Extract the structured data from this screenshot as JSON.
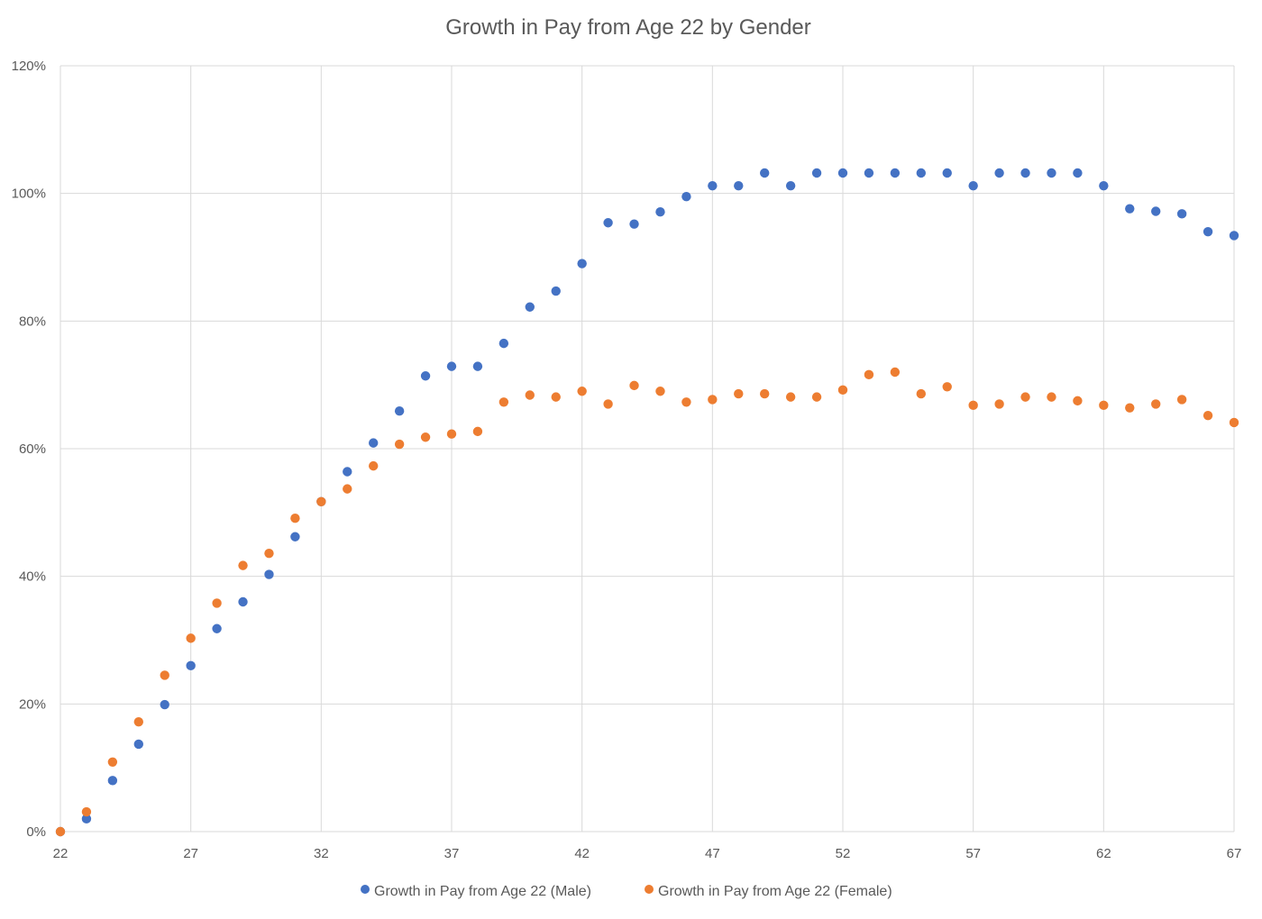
{
  "chart_data": {
    "type": "scatter",
    "title": "Growth in Pay from Age 22 by Gender",
    "xlabel": "",
    "ylabel": "",
    "xlim": [
      22,
      67
    ],
    "ylim": [
      0,
      1.2
    ],
    "x_ticks": [
      22,
      27,
      32,
      37,
      42,
      47,
      52,
      57,
      62,
      67
    ],
    "y_ticks": [
      0,
      0.2,
      0.4,
      0.6,
      0.8,
      1.0,
      1.2
    ],
    "y_tick_labels": [
      "0%",
      "20%",
      "40%",
      "60%",
      "80%",
      "100%",
      "120%"
    ],
    "grid": true,
    "legend_position": "bottom",
    "series": [
      {
        "name": "Growth in Pay from Age 22 (Male)",
        "color": "#4472C4",
        "x": [
          22,
          23,
          24,
          25,
          26,
          27,
          28,
          29,
          30,
          31,
          32,
          33,
          34,
          35,
          36,
          37,
          38,
          39,
          40,
          41,
          42,
          43,
          44,
          45,
          46,
          47,
          48,
          49,
          50,
          51,
          52,
          53,
          54,
          55,
          56,
          57,
          58,
          59,
          60,
          61,
          62,
          63,
          64,
          65,
          66,
          67
        ],
        "y": [
          0.0,
          0.02,
          0.08,
          0.137,
          0.199,
          0.26,
          0.318,
          0.36,
          0.403,
          0.462,
          0.517,
          0.564,
          0.609,
          0.659,
          0.714,
          0.729,
          0.729,
          0.765,
          0.822,
          0.847,
          0.89,
          0.954,
          0.952,
          0.971,
          0.995,
          1.012,
          1.012,
          1.032,
          1.012,
          1.032,
          1.032,
          1.032,
          1.032,
          1.032,
          1.032,
          1.012,
          1.032,
          1.032,
          1.032,
          1.032,
          1.012,
          0.976,
          0.972,
          0.968,
          0.94,
          0.934
        ]
      },
      {
        "name": "Growth in Pay from Age 22 (Female)",
        "color": "#ED7D31",
        "x": [
          22,
          23,
          24,
          25,
          26,
          27,
          28,
          29,
          30,
          31,
          32,
          33,
          34,
          35,
          36,
          37,
          38,
          39,
          40,
          41,
          42,
          43,
          44,
          45,
          46,
          47,
          48,
          49,
          50,
          51,
          52,
          53,
          54,
          55,
          56,
          57,
          58,
          59,
          60,
          61,
          62,
          63,
          64,
          65,
          66,
          67
        ],
        "y": [
          0.0,
          0.031,
          0.109,
          0.172,
          0.245,
          0.303,
          0.358,
          0.417,
          0.436,
          0.491,
          0.517,
          0.537,
          0.573,
          0.607,
          0.618,
          0.623,
          0.627,
          0.673,
          0.684,
          0.681,
          0.69,
          0.67,
          0.699,
          0.69,
          0.673,
          0.677,
          0.686,
          0.686,
          0.681,
          0.681,
          0.692,
          0.716,
          0.72,
          0.686,
          0.697,
          0.668,
          0.67,
          0.681,
          0.681,
          0.675,
          0.668,
          0.664,
          0.67,
          0.677,
          0.652,
          0.641
        ]
      }
    ]
  }
}
